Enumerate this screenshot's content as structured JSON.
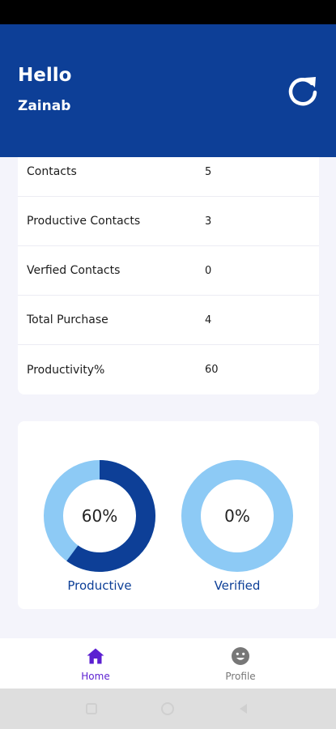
{
  "header": {
    "greeting": "Hello",
    "user_name": "Zainab",
    "refresh_icon": "refresh-icon"
  },
  "stats": [
    {
      "label": "Contacts",
      "value": "5"
    },
    {
      "label": "Productive Contacts",
      "value": "3"
    },
    {
      "label": "Verfied Contacts",
      "value": "0"
    },
    {
      "label": "Total Purchase",
      "value": "4"
    },
    {
      "label": "Productivity%",
      "value": "60"
    }
  ],
  "chart_data": {
    "type": "pie",
    "charts": [
      {
        "label": "Productive",
        "percent": 60,
        "center_text": "60%"
      },
      {
        "label": "Verified",
        "percent": 0,
        "center_text": "0%"
      }
    ],
    "colors": {
      "filled": "#0d3f97",
      "remaining": "#8dcaf5"
    }
  },
  "nav": {
    "items": [
      {
        "label": "Home",
        "icon": "home-icon",
        "active": true
      },
      {
        "label": "Profile",
        "icon": "smiley-icon",
        "active": false
      }
    ]
  },
  "colors": {
    "primary": "#0d3f97",
    "nav_active": "#5b1fd1",
    "nav_inactive": "#777777"
  }
}
